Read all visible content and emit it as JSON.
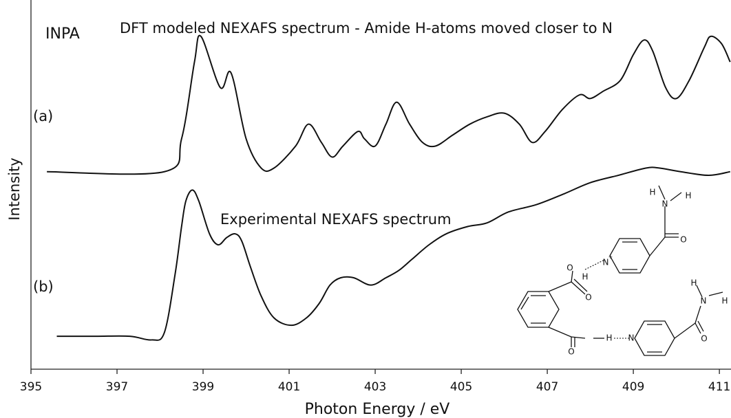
{
  "chart_data": {
    "type": "line",
    "label_text": "INPA",
    "title": "DFT modeled NEXAFS spectrum - Amide H-atoms moved closer to N",
    "annotation": "Experimental NEXAFS spectrum",
    "xlabel": "Photon Energy / eV",
    "ylabel": "Intensity",
    "xlim": [
      395,
      411.27
    ],
    "xticks": [
      395,
      397,
      399,
      401,
      403,
      405,
      407,
      409,
      411
    ],
    "ylim": [
      0,
      1
    ],
    "series": [
      {
        "name": "(a)",
        "color": "#111111",
        "x": [
          395.37,
          398.1,
          398.5,
          398.8,
          398.95,
          399.4,
          399.65,
          400.0,
          400.35,
          400.65,
          401.15,
          401.45,
          401.75,
          402.0,
          402.25,
          402.6,
          402.75,
          403.0,
          403.25,
          403.5,
          403.8,
          404.1,
          404.4,
          404.8,
          405.2,
          405.6,
          406.0,
          406.35,
          406.65,
          406.95,
          407.35,
          407.75,
          408.0,
          408.3,
          408.7,
          409.0,
          409.25,
          409.45,
          409.75,
          410.0,
          410.3,
          410.65,
          410.8,
          411.05,
          411.25
        ],
        "values": [
          0.54,
          0.54,
          0.63,
          0.84,
          0.91,
          0.77,
          0.81,
          0.63,
          0.55,
          0.55,
          0.61,
          0.67,
          0.62,
          0.58,
          0.61,
          0.65,
          0.63,
          0.61,
          0.67,
          0.73,
          0.67,
          0.62,
          0.61,
          0.64,
          0.67,
          0.69,
          0.7,
          0.67,
          0.62,
          0.65,
          0.71,
          0.75,
          0.74,
          0.76,
          0.79,
          0.86,
          0.9,
          0.87,
          0.77,
          0.74,
          0.79,
          0.88,
          0.91,
          0.89,
          0.84
        ]
      },
      {
        "name": "(b)",
        "color": "#111111",
        "x": [
          395.6,
          396.5,
          397.3,
          397.8,
          398.1,
          398.35,
          398.5,
          398.6,
          398.75,
          398.9,
          399.15,
          399.35,
          399.55,
          399.75,
          399.9,
          400.1,
          400.35,
          400.65,
          401.05,
          401.4,
          401.7,
          401.95,
          402.2,
          402.5,
          402.9,
          403.25,
          403.55,
          403.85,
          404.25,
          404.65,
          405.15,
          405.6,
          406.1,
          406.75,
          407.4,
          408.0,
          408.65,
          409.3,
          409.6,
          410.1,
          410.75,
          411.25
        ],
        "values": [
          0.09,
          0.09,
          0.09,
          0.08,
          0.1,
          0.26,
          0.39,
          0.46,
          0.49,
          0.46,
          0.37,
          0.34,
          0.36,
          0.37,
          0.35,
          0.28,
          0.2,
          0.14,
          0.12,
          0.14,
          0.18,
          0.23,
          0.25,
          0.25,
          0.23,
          0.25,
          0.27,
          0.3,
          0.34,
          0.37,
          0.39,
          0.4,
          0.43,
          0.45,
          0.48,
          0.51,
          0.53,
          0.55,
          0.55,
          0.54,
          0.53,
          0.54
        ]
      }
    ]
  },
  "molecule_labels": [
    "H",
    "N",
    "H",
    "O",
    "N",
    "+",
    "O",
    "H",
    "O",
    "O",
    "H",
    "N",
    "O",
    "H",
    "N",
    "H",
    "O"
  ]
}
